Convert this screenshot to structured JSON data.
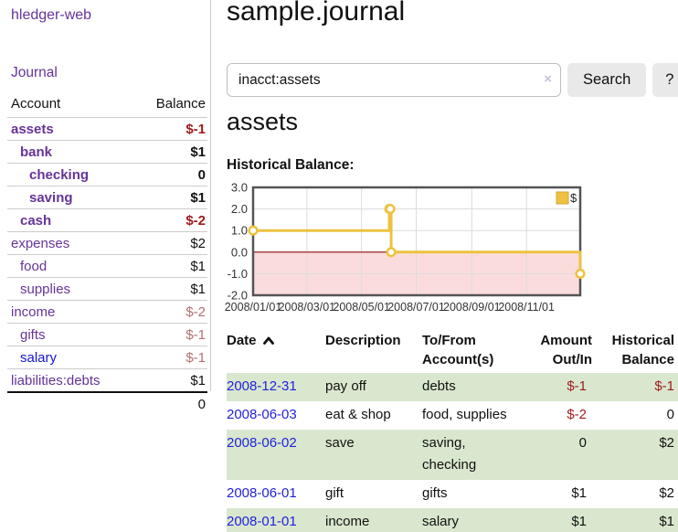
{
  "sidebar": {
    "brand": "hledger-web",
    "nav": {
      "journal": "Journal"
    },
    "accounts_table": {
      "headers": {
        "account": "Account",
        "balance": "Balance"
      },
      "rows": [
        {
          "name": "assets",
          "balance": "$-1"
        },
        {
          "name": "bank",
          "balance": "$1"
        },
        {
          "name": "checking",
          "balance": "0"
        },
        {
          "name": "saving",
          "balance": "$1"
        },
        {
          "name": "cash",
          "balance": "$-2"
        },
        {
          "name": "expenses",
          "balance": "$2"
        },
        {
          "name": "food",
          "balance": "$1"
        },
        {
          "name": "supplies",
          "balance": "$1"
        },
        {
          "name": "income",
          "balance": "$-2"
        },
        {
          "name": "gifts",
          "balance": "$-1"
        },
        {
          "name": "salary",
          "balance": "$-1"
        },
        {
          "name": "liabilities:debts",
          "balance": "$1"
        }
      ],
      "total": "0"
    }
  },
  "main": {
    "title": "sample.journal",
    "search": {
      "query": "inacct:assets",
      "clear_icon": "×",
      "search_label": "Search",
      "help_label": "?"
    },
    "account_heading": "assets",
    "chart_heading": "Historical Balance:"
  },
  "chart_data": {
    "type": "line",
    "subtype": "step-after",
    "title": "Historical Balance",
    "x_domain": [
      "2008-01-01",
      "2008-12-31"
    ],
    "ylim": [
      -2,
      3
    ],
    "y_ticks": [
      3.0,
      2.0,
      1.0,
      0.0,
      -1.0,
      -2.0
    ],
    "x_ticks": [
      "2008/01/01",
      "2008/03/01",
      "2008/05/01",
      "2008/07/01",
      "2008/09/01",
      "2008/11/01"
    ],
    "grid": true,
    "legend_position": "top-right",
    "series": [
      {
        "name": "$",
        "color": "#edc240",
        "points": [
          [
            "2008-01-01",
            1
          ],
          [
            "2008-06-01",
            2
          ],
          [
            "2008-06-02",
            2
          ],
          [
            "2008-06-03",
            0
          ],
          [
            "2008-12-31",
            -1
          ]
        ]
      }
    ],
    "colors": {
      "negative_region_fill": "#fbdcdc",
      "zero_line": "#8b0f0f",
      "grid_line": "#dcdcdc",
      "plot_border": "#545454",
      "marker_fill": "#ffffff"
    }
  },
  "register": {
    "headers": {
      "date": "Date",
      "description": "Description",
      "accounts": "To/From Account(s)",
      "amount": "Amount Out/In",
      "balance": "Historical Balance"
    },
    "sort": {
      "column": "date",
      "direction": "ascending"
    },
    "rows": [
      {
        "date": "2008-12-31",
        "description": "pay off",
        "accounts": "debts",
        "amount": "$-1",
        "balance": "$-1"
      },
      {
        "date": "2008-06-03",
        "description": "eat & shop",
        "accounts": "food, supplies",
        "amount": "$-2",
        "balance": "0"
      },
      {
        "date": "2008-06-02",
        "description": "save",
        "accounts": "saving, checking",
        "amount": "0",
        "balance": "$2"
      },
      {
        "date": "2008-06-01",
        "description": "gift",
        "accounts": "gifts",
        "amount": "$1",
        "balance": "$2"
      },
      {
        "date": "2008-01-01",
        "description": "income",
        "accounts": "salary",
        "amount": "$1",
        "balance": "$1"
      }
    ]
  },
  "colors": {
    "link_purple": "#663399",
    "link_blue": "#2222dd",
    "negative_strong": "#9e1b1b",
    "negative_soft": "#b07070",
    "row_green": "#d9e7ce"
  }
}
